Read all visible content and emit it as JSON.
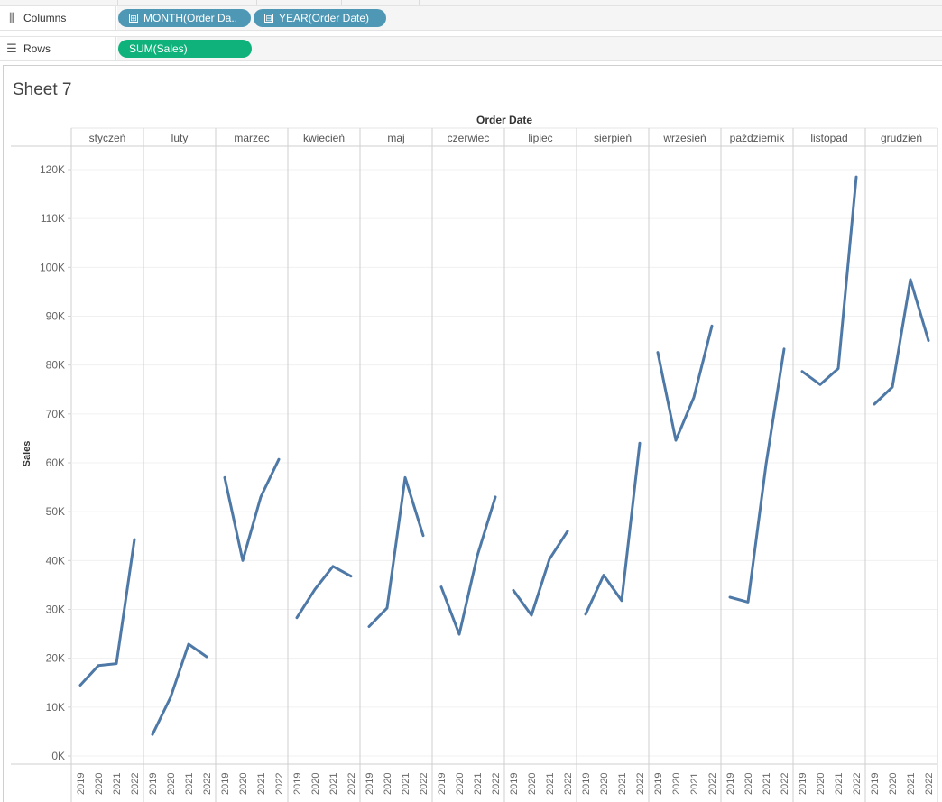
{
  "shelves": {
    "columns": {
      "label": "Columns",
      "icon": "columns-icon",
      "pills": [
        {
          "label": "MONTH(Order Da..",
          "glyph": "⊞"
        },
        {
          "label": "YEAR(Order Date)",
          "glyph": "⊟"
        }
      ]
    },
    "rows": {
      "label": "Rows",
      "icon": "rows-icon",
      "pills": [
        {
          "label": "SUM(Sales)"
        }
      ]
    }
  },
  "sheet": {
    "title": "Sheet 7"
  },
  "colors": {
    "line": "#4e79a7",
    "pill_dimension": "#4f98b5",
    "pill_measure": "#10b27b"
  },
  "chart_data": {
    "type": "line",
    "title": "",
    "column_header": "Order Date",
    "ylabel": "Sales",
    "ylim": [
      -1500,
      122000
    ],
    "yticks": [
      0,
      10000,
      20000,
      30000,
      40000,
      50000,
      60000,
      70000,
      80000,
      90000,
      100000,
      110000,
      120000
    ],
    "ytick_labels": [
      "0K",
      "10K",
      "20K",
      "30K",
      "40K",
      "50K",
      "60K",
      "70K",
      "80K",
      "90K",
      "100K",
      "110K",
      "120K"
    ],
    "years": [
      "2019",
      "2020",
      "2021",
      "2022"
    ],
    "grid": true,
    "panes": [
      {
        "month": "styczeń",
        "values": [
          14500,
          18500,
          18900,
          44300
        ]
      },
      {
        "month": "luty",
        "values": [
          4400,
          12000,
          22900,
          20300
        ]
      },
      {
        "month": "marzec",
        "values": [
          57000,
          40000,
          53000,
          60700
        ]
      },
      {
        "month": "kwiecień",
        "values": [
          28300,
          34100,
          38800,
          36800
        ]
      },
      {
        "month": "maj",
        "values": [
          26500,
          30300,
          57000,
          45100
        ]
      },
      {
        "month": "czerwiec",
        "values": [
          34600,
          24900,
          41000,
          53000
        ]
      },
      {
        "month": "lipiec",
        "values": [
          33900,
          28800,
          40300,
          46000
        ]
      },
      {
        "month": "sierpień",
        "values": [
          29000,
          37000,
          31800,
          64000
        ]
      },
      {
        "month": "wrzesień",
        "values": [
          82600,
          64600,
          73400,
          88000
        ]
      },
      {
        "month": "październik",
        "values": [
          32500,
          31500,
          59700,
          83300
        ]
      },
      {
        "month": "listopad",
        "values": [
          78700,
          76000,
          79300,
          118500
        ]
      },
      {
        "month": "grudzień",
        "values": [
          72000,
          75500,
          97500,
          85000
        ]
      }
    ]
  }
}
